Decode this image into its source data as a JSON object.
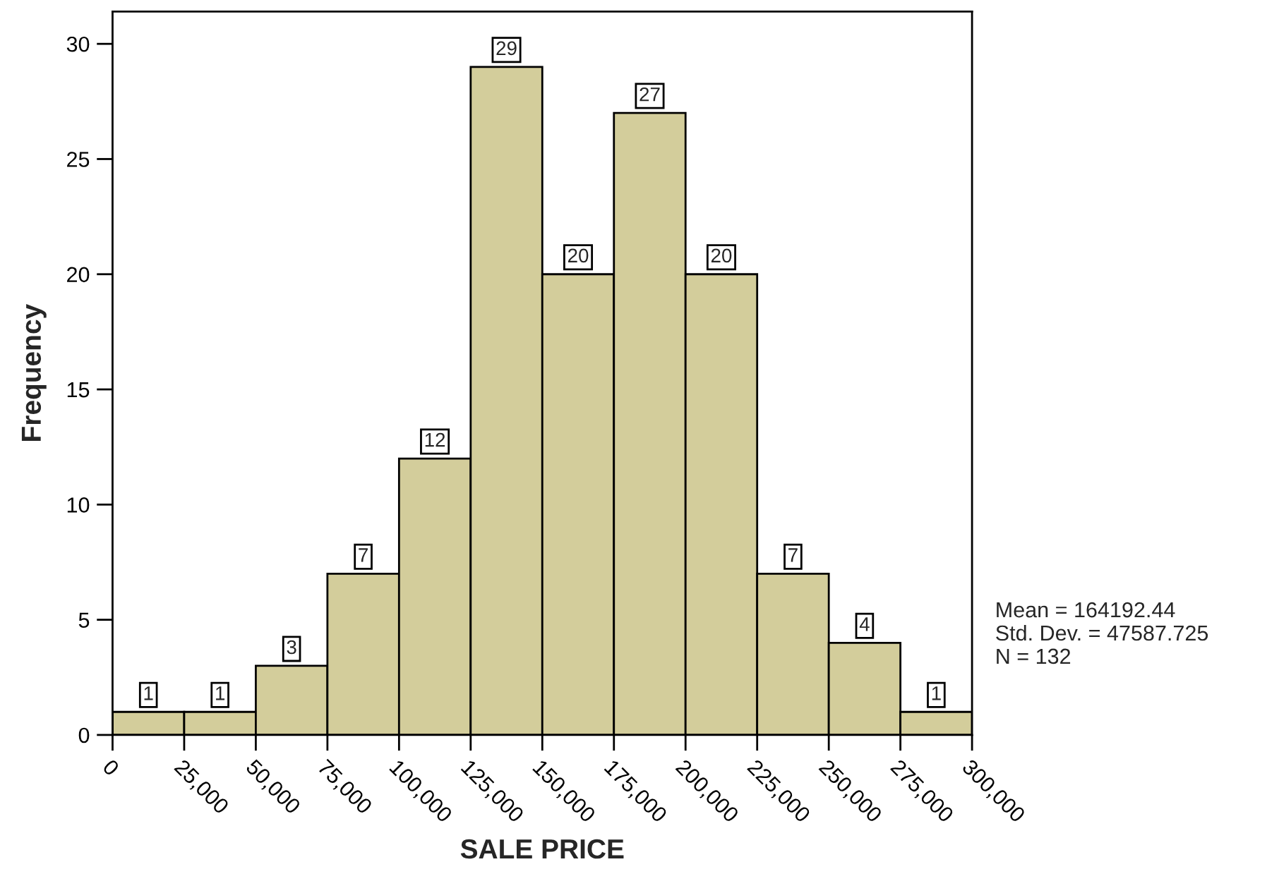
{
  "chart_data": {
    "type": "histogram",
    "xlabel": "SALE PRICE",
    "ylabel": "Frequency",
    "bins": [
      0,
      25000,
      50000,
      75000,
      100000,
      125000,
      150000,
      175000,
      200000,
      225000,
      250000,
      275000,
      300000
    ],
    "values": [
      1,
      1,
      3,
      7,
      12,
      29,
      20,
      27,
      20,
      7,
      4,
      1
    ],
    "color": "#d3cd9b",
    "data_labels": true,
    "xlim": [
      0,
      300000
    ],
    "xticks": [
      0,
      {
        "value": 25000,
        "label": "25,000"
      },
      {
        "value": 50000,
        "label": "50,000"
      },
      {
        "value": 75000,
        "label": "75,000"
      },
      {
        "value": 100000,
        "label": "100,000"
      },
      {
        "value": 125000,
        "label": "125,000"
      },
      {
        "value": 150000,
        "label": "150,000"
      },
      {
        "value": 175000,
        "label": "175,000"
      },
      {
        "value": 200000,
        "label": "200,000"
      },
      {
        "value": 225000,
        "label": "225,000"
      },
      {
        "value": 250000,
        "label": "250,000"
      },
      {
        "value": 275000,
        "label": "275,000"
      },
      {
        "value": 300000,
        "label": "300,000"
      }
    ],
    "ylim": [
      0,
      31.4
    ],
    "yticks": [
      0,
      5,
      10,
      15,
      20,
      25,
      30
    ],
    "grid": false,
    "legend": false,
    "annotations": [
      "Mean = 164192.44",
      "Std. Dev. = 47587.725",
      "N = 132"
    ]
  }
}
